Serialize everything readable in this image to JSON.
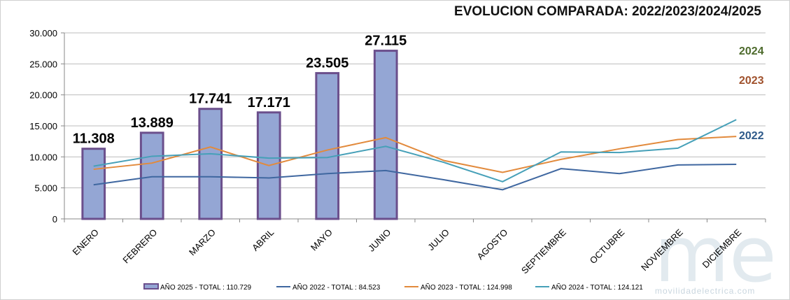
{
  "title": "EVOLUCION COMPARADA: 2022/2023/2024/2025",
  "watermark": "movilidadelectrica.com",
  "chart_data": {
    "type": "bar",
    "title": "EVOLUCION COMPARADA: 2022/2023/2024/2025",
    "categories": [
      "ENERO",
      "FEBRERO",
      "MARZO",
      "ABRIL",
      "MAYO",
      "JUNIO",
      "JULIO",
      "AGOSTO",
      "SEPTIEMBRE",
      "OCTUBRE",
      "NOVIEMBRE",
      "DICIEMBRE"
    ],
    "ylim": [
      0,
      30000
    ],
    "yticks": [
      "0",
      "5.000",
      "10.000",
      "15.000",
      "20.000",
      "25.000",
      "30.000"
    ],
    "ytick_values": [
      0,
      5000,
      10000,
      15000,
      20000,
      25000,
      30000
    ],
    "grid": true,
    "legend": "bottom",
    "series": [
      {
        "name": "AÑO 2025 - TOTAL : 110.729",
        "type": "bar",
        "color": "#94a6d4",
        "border": "#6b4f8c",
        "values": [
          11308,
          13889,
          17741,
          17171,
          23505,
          27115,
          null,
          null,
          null,
          null,
          null,
          null
        ],
        "labels": [
          "11.308",
          "13.889",
          "17.741",
          "17.171",
          "23.505",
          "27.115"
        ]
      },
      {
        "name": "AÑO 2022 - TOTAL : 84.523",
        "type": "line",
        "color": "#3f67a0",
        "values": [
          5500,
          6800,
          6800,
          6600,
          7300,
          7800,
          6300,
          4700,
          8100,
          7300,
          8700,
          8800
        ]
      },
      {
        "name": "AÑO 2023 - TOTAL : 124.998",
        "type": "line",
        "color": "#e28a3c",
        "values": [
          8000,
          9000,
          11600,
          8600,
          11100,
          13100,
          9400,
          7500,
          9600,
          11300,
          12800,
          13300
        ]
      },
      {
        "name": "AÑO 2024 - TOTAL : 124.121",
        "type": "line",
        "color": "#46a0b8",
        "values": [
          8500,
          10100,
          10500,
          9800,
          9900,
          11700,
          9100,
          6000,
          10800,
          10700,
          11400,
          16000
        ]
      }
    ],
    "side_labels": [
      {
        "text": "2024",
        "color": "#4e6b2d"
      },
      {
        "text": "2023",
        "color": "#a0522d"
      },
      {
        "text": "2022",
        "color": "#2e5a8a"
      }
    ]
  }
}
